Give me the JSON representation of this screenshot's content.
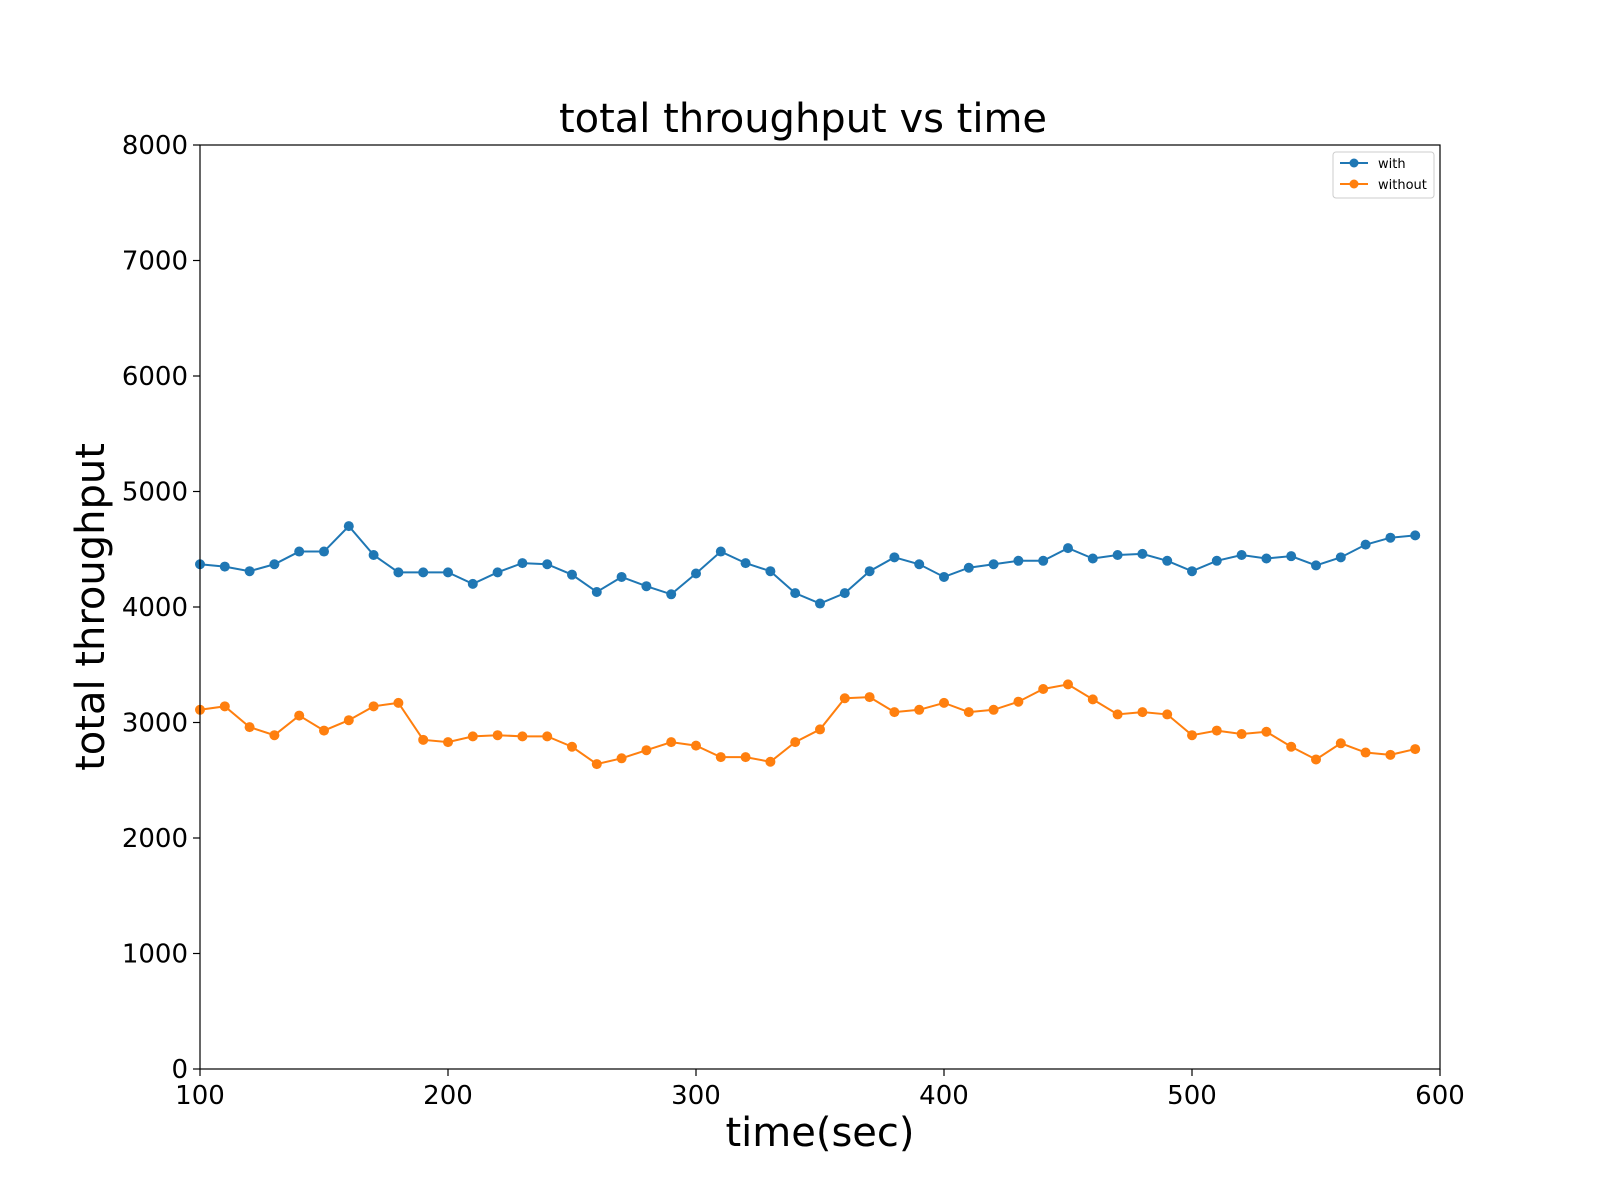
{
  "chart_data": {
    "type": "line",
    "title": "total throughput vs time",
    "xlabel": "time(sec)",
    "ylabel": "total throughput",
    "xlim": [
      100,
      600
    ],
    "ylim": [
      0,
      8000
    ],
    "xticks": [
      100,
      200,
      300,
      400,
      500,
      600
    ],
    "yticks": [
      0,
      1000,
      2000,
      3000,
      4000,
      5000,
      6000,
      7000,
      8000
    ],
    "grid": false,
    "legend_position": "top-right",
    "x": [
      100,
      110,
      120,
      130,
      140,
      150,
      160,
      170,
      180,
      190,
      200,
      210,
      220,
      230,
      240,
      250,
      260,
      270,
      280,
      290,
      300,
      310,
      320,
      330,
      340,
      350,
      360,
      370,
      380,
      390,
      400,
      410,
      420,
      430,
      440,
      450,
      460,
      470,
      480,
      490,
      500,
      510,
      520,
      530,
      540,
      550,
      560,
      570,
      580,
      590
    ],
    "series": [
      {
        "name": "with",
        "color": "#1f77b4",
        "values": [
          4370,
          4350,
          4310,
          4370,
          4480,
          4480,
          4700,
          4450,
          4300,
          4300,
          4300,
          4200,
          4300,
          4380,
          4370,
          4280,
          4130,
          4260,
          4180,
          4110,
          4290,
          4480,
          4380,
          4310,
          4120,
          4030,
          4120,
          4310,
          4430,
          4370,
          4260,
          4340,
          4370,
          4400,
          4400,
          4510,
          4420,
          4450,
          4460,
          4400,
          4310,
          4400,
          4450,
          4420,
          4440,
          4360,
          4430,
          4540,
          4600,
          4620
        ]
      },
      {
        "name": "without",
        "color": "#ff7f0e",
        "values": [
          3110,
          3140,
          2960,
          2890,
          3060,
          2930,
          3020,
          3140,
          3170,
          2850,
          2830,
          2880,
          2890,
          2880,
          2880,
          2790,
          2640,
          2690,
          2760,
          2830,
          2800,
          2700,
          2700,
          2660,
          2830,
          2940,
          3210,
          3220,
          3090,
          3110,
          3170,
          3090,
          3110,
          3180,
          3290,
          3330,
          3200,
          3070,
          3090,
          3070,
          2890,
          2930,
          2900,
          2920,
          2790,
          2680,
          2820,
          2740,
          2720,
          2770
        ]
      }
    ]
  }
}
